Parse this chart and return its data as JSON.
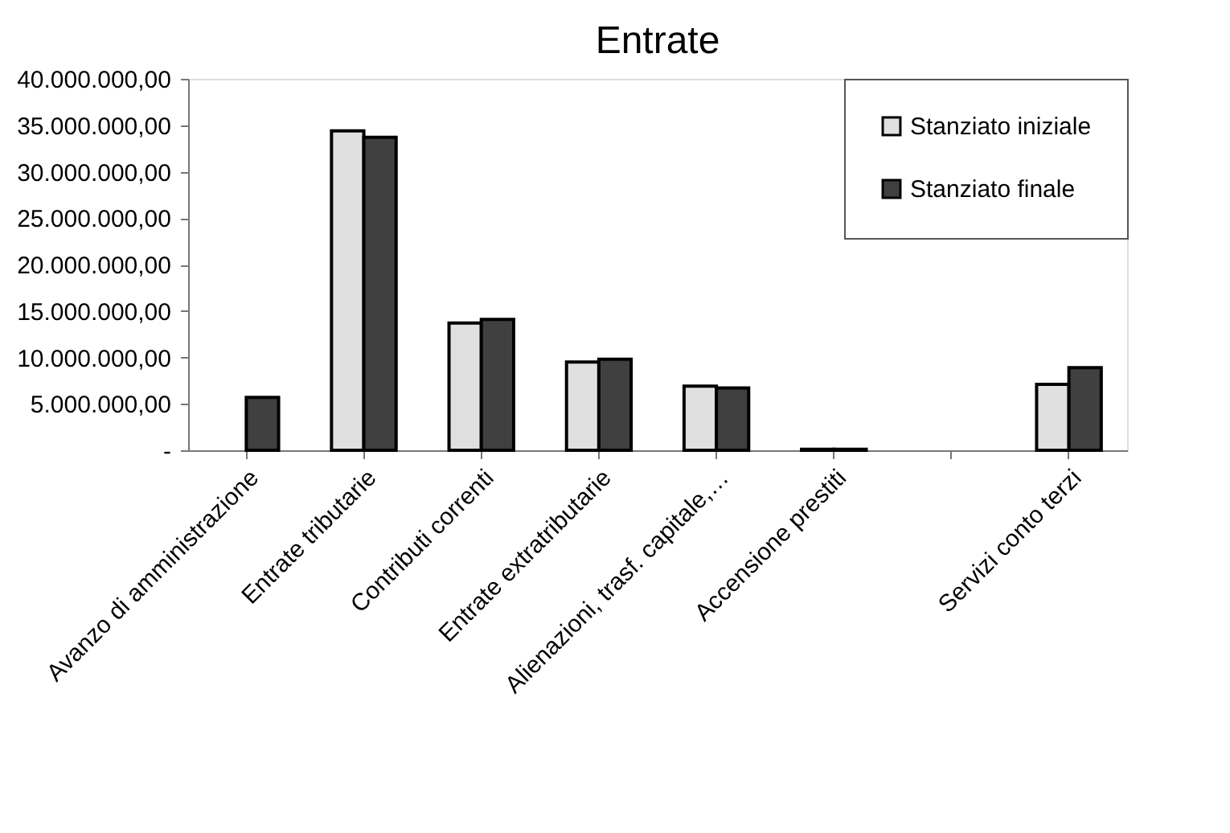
{
  "chart_data": {
    "type": "bar",
    "title": "Entrate",
    "categories": [
      "Avanzo di amministrazione",
      "Entrate tributarie",
      "Contributi correnti",
      "Entrate extratributarie",
      "Alienazioni, trasf. capitale,…",
      "Accensione prestiti",
      null,
      "Servizi  conto terzi"
    ],
    "series": [
      {
        "name": "Stanziato iniziale",
        "color": "#e0e0e0",
        "values": [
          null,
          34400000,
          13700000,
          9500000,
          6900000,
          100000,
          null,
          7100000
        ]
      },
      {
        "name": "Stanziato finale",
        "color": "#404040",
        "values": [
          5700000,
          33700000,
          14100000,
          9800000,
          6700000,
          100000,
          null,
          8900000
        ]
      }
    ],
    "ylim": [
      0,
      40000000
    ],
    "yticks": [
      {
        "value": 0,
        "label": "-"
      },
      {
        "value": 5000000,
        "label": "5.000.000,00"
      },
      {
        "value": 10000000,
        "label": "10.000.000,00"
      },
      {
        "value": 15000000,
        "label": "15.000.000,00"
      },
      {
        "value": 20000000,
        "label": "20.000.000,00"
      },
      {
        "value": 25000000,
        "label": "25.000.000,00"
      },
      {
        "value": 30000000,
        "label": "30.000.000,00"
      },
      {
        "value": 35000000,
        "label": "35.000.000,00"
      },
      {
        "value": 40000000,
        "label": "40.000.000,00"
      }
    ],
    "grid": false,
    "legend": "top right"
  }
}
